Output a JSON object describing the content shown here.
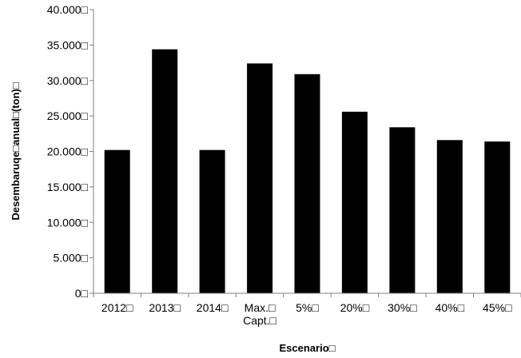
{
  "chart_data": {
    "type": "bar",
    "title": "",
    "xlabel": "Escenario□",
    "ylabel": "Desembaruqe□anual□(ton)□",
    "categories": [
      [
        "2012□"
      ],
      [
        "2013□"
      ],
      [
        "2014□"
      ],
      [
        "Max.□",
        "Capt.□"
      ],
      [
        "5%□"
      ],
      [
        "20%□"
      ],
      [
        "30%□"
      ],
      [
        "40%□"
      ],
      [
        "45%□"
      ]
    ],
    "values": [
      20200,
      34400,
      20200,
      32400,
      30900,
      25600,
      23400,
      21600,
      21400
    ],
    "ylim": [
      0,
      40000
    ],
    "yticks": [
      0,
      5000,
      10000,
      15000,
      20000,
      25000,
      30000,
      35000,
      40000
    ],
    "ytick_labels": [
      "0□",
      "5.000□",
      "10.000□",
      "15.000□",
      "20.000□",
      "25.000□",
      "30.000□",
      "35.000□",
      "40.000□"
    ],
    "grid": false,
    "legend": "none",
    "bar_color": "#000000",
    "axis_color": "#808080"
  }
}
